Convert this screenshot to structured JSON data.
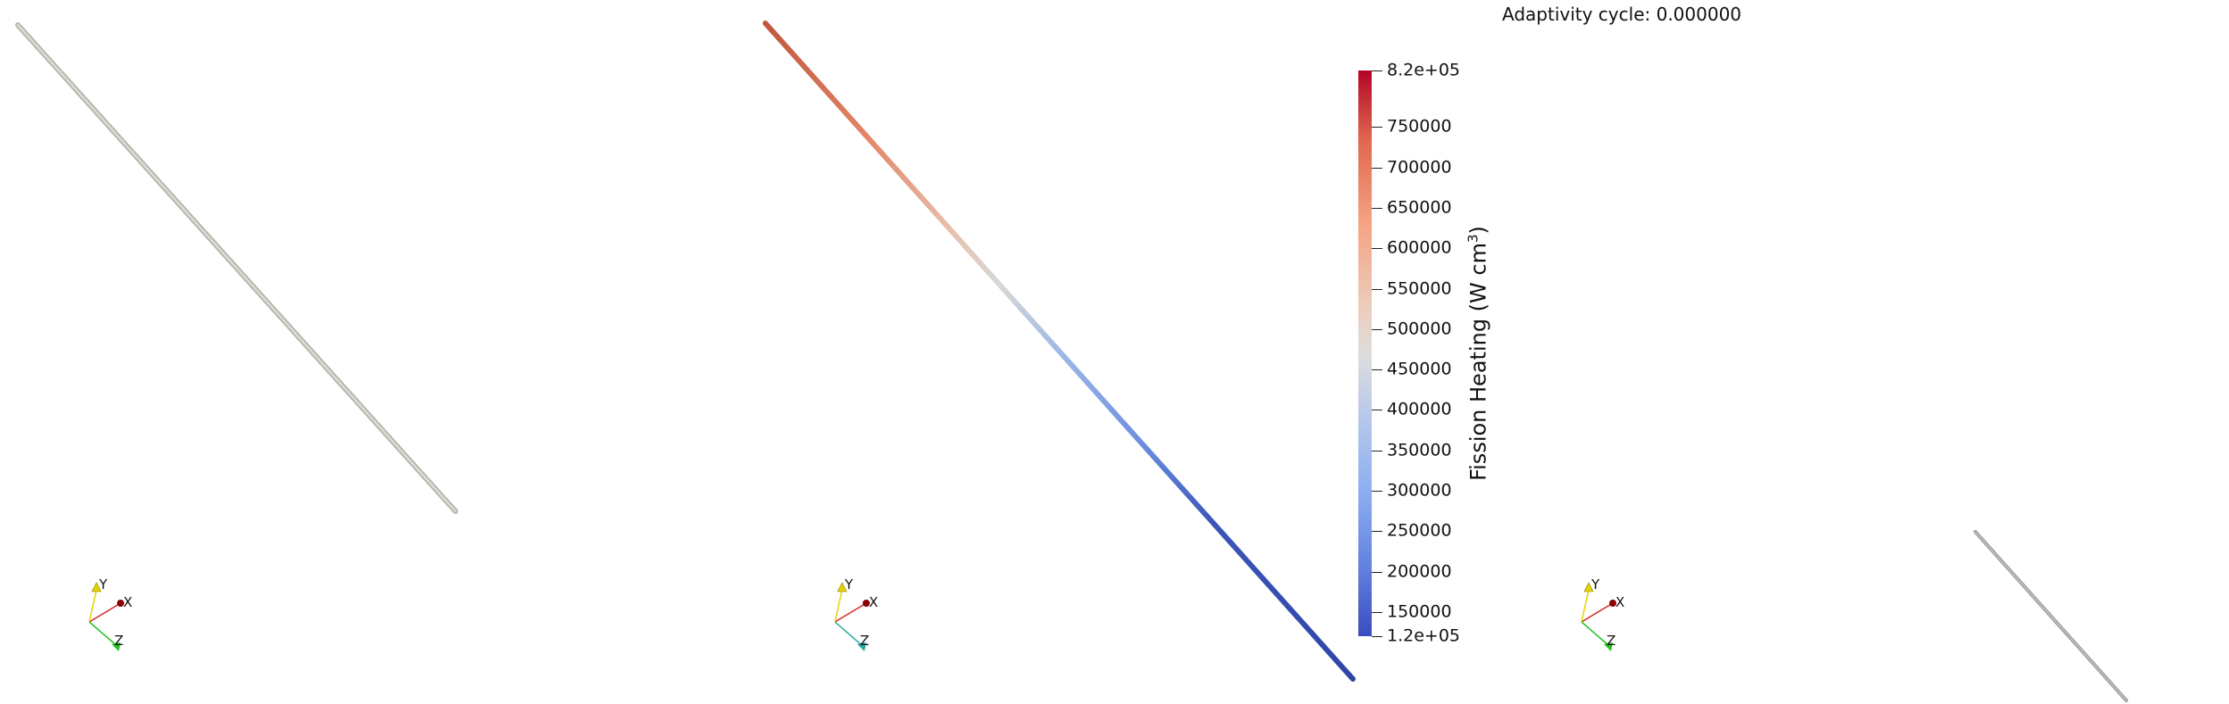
{
  "header": {
    "adaptivity_text": "Adaptivity cycle: 0.000000"
  },
  "colorbar": {
    "title": "Fission Heating (W cm",
    "title_sup": "3",
    "title_close": ")",
    "labels": [
      "8.2e+05",
      "750000",
      "700000",
      "650000",
      "600000",
      "550000",
      "500000",
      "450000",
      "400000",
      "350000",
      "300000",
      "250000",
      "200000",
      "150000",
      "1.2e+05"
    ],
    "range": [
      120000,
      820000
    ],
    "colormap": "cool-to-warm",
    "colors": {
      "low": "#3b4cc0",
      "mid": "#dddddd",
      "high": "#b40426"
    }
  },
  "orientation_axes": {
    "x_label": "X",
    "y_label": "Y",
    "z_label": "Z",
    "colors": {
      "x": "#d62728",
      "y": "#e6d300",
      "z": "#22c322"
    }
  },
  "views": [
    {
      "name": "left-viewport",
      "rod_color": "#c8c8c0"
    },
    {
      "name": "center-viewport",
      "rod_color": "cool-to-warm"
    },
    {
      "name": "right-viewport",
      "rod_color": "#a9a9a9"
    }
  ]
}
